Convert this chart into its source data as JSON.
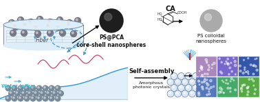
{
  "bg_color": "#ffffff",
  "fiber_label": "Fiber",
  "water_label": "Water influx",
  "ps_label": "PS colloidal\nnanospheres",
  "psca_label": "PS@PCA\ncore-shell nanospheres",
  "ca_label": "CA",
  "selfassembly_label": "Self-assembly",
  "apc_label": "Amorphous\nphotonic crystals",
  "color_grid": [
    [
      "#5577bb",
      "#44aa66",
      "#55aa44"
    ],
    [
      "#aa88bb",
      "#7766cc",
      "#3355aa"
    ]
  ],
  "sphere_gray": "#888888",
  "sphere_dark": "#2a2a2a",
  "bowl_fill": "#ddeef8",
  "bowl_edge": "#7090a8",
  "blue_arrow": "#4499cc",
  "cyan_arrow": "#44bbcc",
  "black_arrow": "#111111",
  "pink_color": "#cc4477",
  "fiber_mesh": "#bbccdd",
  "font_sm": 5,
  "font_md": 6,
  "font_lg": 7
}
